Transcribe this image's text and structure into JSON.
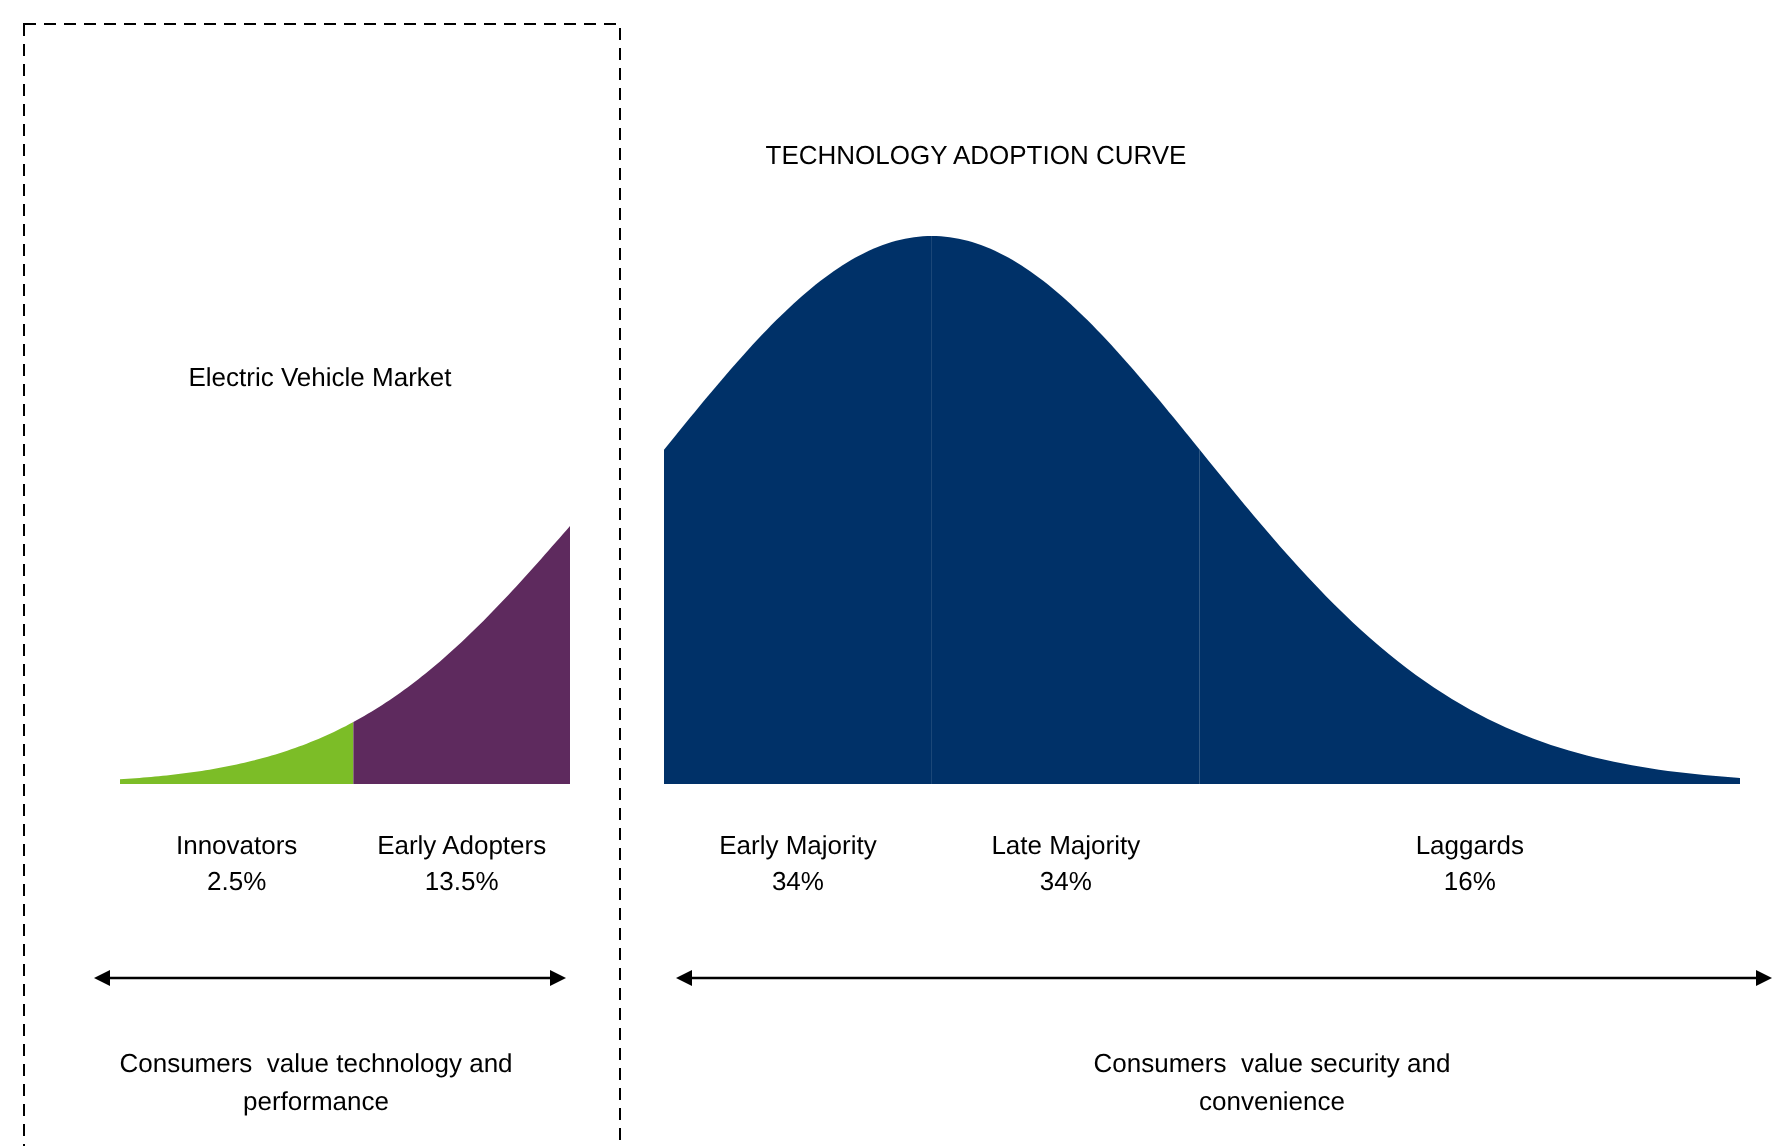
{
  "chart_data": {
    "type": "other",
    "title": "TECHNOLOGY ADOPTION CURVE",
    "categories": [
      "Innovators",
      "Early Adopters",
      "Early Majority",
      "Late Majority",
      "Laggards"
    ],
    "values": [
      2.5,
      13.5,
      34,
      34,
      16
    ],
    "value_labels": [
      "2.5%",
      "13.5%",
      "34%",
      "34%",
      "16%"
    ],
    "colors": [
      "#7cbd27",
      "#5e2a5e",
      "#003168",
      "#003168",
      "#003168"
    ],
    "annotations": [
      "Electric Vehicle Market",
      "Consumers  value technology and performance",
      "Consumers  value security and convenience"
    ]
  }
}
